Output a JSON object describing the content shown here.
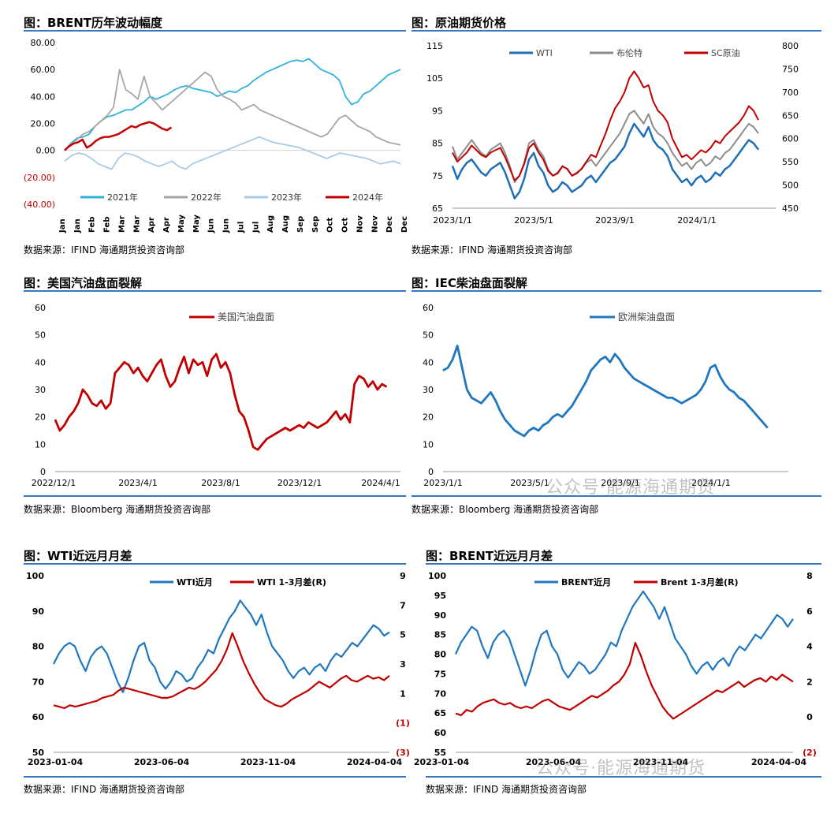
{
  "chart_data": [
    {
      "id": "c1",
      "type": "line",
      "title": "图：BRENT历年波动幅度",
      "source": "数据来源：IFIND   海通期货投资咨询部",
      "x_ticks": [
        "Jan",
        "Jan",
        "Feb",
        "Feb",
        "Mar",
        "Mar",
        "Apr",
        "Apr",
        "May",
        "May",
        "Jun",
        "Jun",
        "Jul",
        "Jul",
        "Aug",
        "Aug",
        "Sep",
        "Sep",
        "Oct",
        "Oct",
        "Nov",
        "Nov",
        "Dec",
        "Dec"
      ],
      "y_ticks": [
        "80.00",
        "60.00",
        "40.00",
        "20.00",
        "0.00",
        "(20.00)",
        "(40.00)"
      ],
      "ylim": [
        -40,
        80
      ],
      "negative_tick_color": "#c00000",
      "legend_position": "bottom",
      "series": [
        {
          "name": "2021年",
          "color": "#2fb3d8",
          "values": [
            0,
            5,
            9,
            10,
            12,
            18,
            22,
            25,
            26,
            28,
            30,
            30,
            33,
            36,
            40,
            38,
            40,
            42,
            45,
            47,
            48,
            46,
            45,
            44,
            43,
            40,
            42,
            44,
            43,
            46,
            48,
            52,
            55,
            58,
            60,
            62,
            64,
            66,
            67,
            66,
            68,
            64,
            60,
            58,
            56,
            52,
            40,
            34,
            36,
            42,
            44,
            48,
            52,
            56,
            58,
            60
          ]
        },
        {
          "name": "2022年",
          "color": "#a6a6a6",
          "values": [
            0,
            4,
            8,
            12,
            14,
            18,
            22,
            26,
            32,
            60,
            45,
            42,
            38,
            55,
            40,
            35,
            30,
            34,
            38,
            42,
            46,
            50,
            54,
            58,
            55,
            45,
            40,
            38,
            35,
            30,
            32,
            34,
            30,
            28,
            26,
            24,
            22,
            20,
            18,
            16,
            14,
            12,
            10,
            12,
            18,
            24,
            26,
            22,
            18,
            16,
            14,
            10,
            8,
            6,
            5,
            4
          ]
        },
        {
          "name": "2023年",
          "color": "#a9cbe6",
          "values": [
            -8,
            -4,
            -2,
            -3,
            -6,
            -10,
            -12,
            -14,
            -6,
            -2,
            -3,
            -5,
            -8,
            -10,
            -12,
            -10,
            -8,
            -12,
            -14,
            -10,
            -8,
            -6,
            -4,
            -2,
            0,
            2,
            4,
            6,
            8,
            10,
            8,
            6,
            5,
            4,
            3,
            2,
            0,
            -2,
            -4,
            -6,
            -4,
            -2,
            -3,
            -4,
            -5,
            -6,
            -8,
            -10,
            -9,
            -8,
            -10
          ]
        },
        {
          "name": "2024年",
          "color": "#c00000",
          "values": [
            0,
            3,
            5,
            6,
            8,
            2,
            4,
            7,
            9,
            10,
            10,
            11,
            12,
            14,
            16,
            18,
            17,
            19,
            20,
            21,
            20,
            18,
            16,
            15,
            17
          ]
        }
      ]
    },
    {
      "id": "c2",
      "type": "line",
      "title": "图：原油期货价格",
      "source": "数据来源：IFIND   海通期货投资咨询部",
      "x_ticks": [
        "2023/1/1",
        "2023/5/1",
        "2023/9/1",
        "2024/1/1"
      ],
      "y_left_ticks": [
        "115",
        "105",
        "95",
        "85",
        "75",
        "65"
      ],
      "y_right_ticks": [
        "800",
        "750",
        "700",
        "650",
        "600",
        "550",
        "500",
        "450"
      ],
      "ylim_left": [
        65,
        115
      ],
      "ylim_right": [
        450,
        800
      ],
      "legend_position": "top",
      "series": [
        {
          "name": "WTI",
          "color": "#1f6fb8",
          "axis": "left",
          "values": [
            78,
            74,
            77,
            79,
            80,
            78,
            76,
            75,
            77,
            78,
            79,
            76,
            72,
            68,
            70,
            74,
            80,
            82,
            78,
            76,
            72,
            70,
            71,
            73,
            72,
            70,
            71,
            72,
            74,
            75,
            73,
            75,
            77,
            79,
            80,
            82,
            84,
            88,
            91,
            89,
            87,
            90,
            86,
            84,
            83,
            81,
            77,
            75,
            73,
            74,
            72,
            74,
            75,
            73,
            74,
            76,
            75,
            77,
            78,
            80,
            82,
            84,
            86,
            85,
            83
          ]
        },
        {
          "name": "布伦特",
          "color": "#8c8c8c",
          "axis": "left",
          "values": [
            84,
            80,
            82,
            84,
            86,
            84,
            82,
            81,
            83,
            84,
            85,
            82,
            78,
            73,
            75,
            79,
            85,
            86,
            83,
            81,
            77,
            75,
            76,
            78,
            77,
            75,
            76,
            77,
            79,
            80,
            78,
            80,
            82,
            84,
            86,
            88,
            91,
            94,
            95,
            93,
            91,
            94,
            90,
            88,
            87,
            85,
            82,
            80,
            78,
            79,
            77,
            79,
            80,
            78,
            79,
            81,
            80,
            82,
            83,
            85,
            87,
            89,
            91,
            90,
            88
          ]
        },
        {
          "name": "SC原油",
          "color": "#c00000",
          "axis": "right",
          "values": [
            570,
            550,
            560,
            570,
            585,
            575,
            565,
            560,
            570,
            575,
            580,
            560,
            535,
            510,
            520,
            545,
            580,
            590,
            570,
            555,
            530,
            520,
            525,
            540,
            535,
            520,
            525,
            535,
            550,
            565,
            560,
            585,
            610,
            640,
            665,
            680,
            700,
            730,
            745,
            730,
            710,
            715,
            680,
            660,
            650,
            635,
            600,
            580,
            560,
            565,
            555,
            565,
            575,
            570,
            580,
            595,
            590,
            605,
            615,
            625,
            635,
            650,
            670,
            660,
            640
          ]
        }
      ]
    },
    {
      "id": "c3",
      "type": "line",
      "title": "图：美国汽油盘面裂解",
      "source": "数据来源：Bloomberg   海通期货投资咨询部",
      "x_ticks": [
        "2022/12/1",
        "2023/4/1",
        "2023/8/1",
        "2023/12/1",
        "2024/4/1"
      ],
      "y_ticks": [
        "60",
        "50",
        "40",
        "30",
        "20",
        "10",
        "0"
      ],
      "ylim": [
        0,
        60
      ],
      "legend_position": "top",
      "series": [
        {
          "name": "美国汽油盘面",
          "color": "#c00000",
          "values": [
            19,
            15,
            17,
            20,
            22,
            25,
            30,
            28,
            25,
            24,
            26,
            23,
            25,
            36,
            38,
            40,
            39,
            36,
            38,
            35,
            33,
            36,
            39,
            41,
            35,
            31,
            33,
            38,
            42,
            36,
            41,
            39,
            40,
            35,
            41,
            43,
            38,
            40,
            36,
            28,
            22,
            20,
            15,
            9,
            8,
            10,
            12,
            13,
            14,
            15,
            16,
            15,
            16,
            17,
            16,
            18,
            17,
            16,
            17,
            18,
            20,
            22,
            19,
            21,
            18,
            32,
            35,
            34,
            31,
            33,
            30,
            32,
            31
          ]
        }
      ]
    },
    {
      "id": "c4",
      "type": "line",
      "title": "图：IEC柴油盘面裂解",
      "source": "数据来源：Bloomberg   海通期货投资咨询部",
      "x_ticks": [
        "2023/1/1",
        "2023/5/1",
        "2023/9/1",
        "2024/1/1"
      ],
      "y_ticks": [
        "60",
        "50",
        "40",
        "30",
        "20",
        "10",
        "0"
      ],
      "ylim": [
        0,
        60
      ],
      "legend_position": "top",
      "series": [
        {
          "name": "欧洲柴油盘面",
          "color": "#1f77bf",
          "values": [
            37,
            38,
            41,
            46,
            38,
            30,
            27,
            26,
            25,
            27,
            29,
            26,
            22,
            19,
            17,
            15,
            14,
            13,
            15,
            16,
            15,
            17,
            18,
            20,
            21,
            20,
            22,
            24,
            27,
            30,
            33,
            37,
            39,
            41,
            42,
            40,
            43,
            41,
            38,
            36,
            34,
            33,
            32,
            31,
            30,
            29,
            28,
            27,
            27,
            26,
            25,
            26,
            27,
            28,
            30,
            33,
            38,
            39,
            35,
            32,
            30,
            29,
            27,
            26,
            24,
            22,
            20,
            18,
            16
          ]
        }
      ]
    },
    {
      "id": "c5",
      "type": "line",
      "title": "图：WTI近远月月差",
      "source": "数据来源：IFIND   海通期货投资咨询部",
      "x_ticks": [
        "2023-01-04",
        "2023-06-04",
        "2023-11-04",
        "2024-04-04"
      ],
      "y_left_ticks": [
        "100",
        "90",
        "80",
        "70",
        "60",
        "50"
      ],
      "y_right_ticks": [
        "9",
        "7",
        "5",
        "3",
        "1",
        "(1)",
        "(3)"
      ],
      "ylim_left": [
        50,
        100
      ],
      "ylim_right": [
        -3,
        9
      ],
      "legend_position": "top",
      "series": [
        {
          "name": "WTI近月",
          "color": "#1f77bf",
          "axis": "left",
          "values": [
            75,
            78,
            80,
            81,
            80,
            76,
            73,
            77,
            79,
            80,
            78,
            74,
            70,
            67,
            71,
            76,
            80,
            81,
            76,
            74,
            70,
            68,
            70,
            73,
            72,
            70,
            71,
            74,
            76,
            79,
            78,
            82,
            85,
            88,
            90,
            93,
            91,
            89,
            86,
            89,
            84,
            80,
            78,
            76,
            73,
            71,
            73,
            74,
            72,
            74,
            75,
            73,
            76,
            78,
            77,
            79,
            81,
            80,
            82,
            84,
            86,
            85,
            83,
            84
          ]
        },
        {
          "name": "WTI 1-3月差(R)",
          "color": "#c00000",
          "axis": "right",
          "values": [
            0.2,
            0.1,
            0,
            0.2,
            0.1,
            0.2,
            0.3,
            0.4,
            0.5,
            0.7,
            0.8,
            0.9,
            1.2,
            1.4,
            1.3,
            1.2,
            1.1,
            1.0,
            0.9,
            0.8,
            0.7,
            0.7,
            0.8,
            1.0,
            1.2,
            1.4,
            1.3,
            1.5,
            1.8,
            2.2,
            2.6,
            3.2,
            4.0,
            5.1,
            4.2,
            3.2,
            2.4,
            1.7,
            1.1,
            0.6,
            0.4,
            0.2,
            0.1,
            0.3,
            0.6,
            0.8,
            1.0,
            1.2,
            1.5,
            1.8,
            1.6,
            1.4,
            1.7,
            2.0,
            2.2,
            1.9,
            1.8,
            2.0,
            2.2,
            2.0,
            2.1,
            1.9,
            2.2
          ]
        }
      ]
    },
    {
      "id": "c6",
      "type": "line",
      "title": "图：BRENT近远月月差",
      "source": "数据来源：IFIND   海通期货投资咨询部",
      "x_ticks": [
        "2023-01-04",
        "2023-06-04",
        "2023-11-04",
        "2024-04-04"
      ],
      "y_left_ticks": [
        "100",
        "95",
        "90",
        "85",
        "80",
        "75",
        "70",
        "65",
        "60",
        "55"
      ],
      "y_right_ticks": [
        "8",
        "6",
        "4",
        "2",
        "0",
        "(2)"
      ],
      "ylim_left": [
        55,
        100
      ],
      "ylim_right": [
        -2,
        8
      ],
      "legend_position": "top",
      "series": [
        {
          "name": "BRENT近月",
          "color": "#1f77bf",
          "axis": "left",
          "values": [
            80,
            83,
            85,
            87,
            86,
            82,
            79,
            83,
            85,
            86,
            84,
            80,
            76,
            72,
            76,
            81,
            85,
            86,
            82,
            80,
            76,
            74,
            76,
            78,
            77,
            75,
            76,
            78,
            80,
            83,
            82,
            86,
            89,
            92,
            94,
            96,
            94,
            92,
            89,
            92,
            88,
            84,
            82,
            80,
            77,
            75,
            77,
            78,
            76,
            78,
            79,
            77,
            80,
            82,
            81,
            83,
            85,
            84,
            86,
            88,
            90,
            89,
            87,
            89
          ]
        },
        {
          "name": "Brent 1-3月差(R)",
          "color": "#c00000",
          "axis": "right",
          "values": [
            0.2,
            0.1,
            0.4,
            0.3,
            0.6,
            0.8,
            0.9,
            1.0,
            0.8,
            0.7,
            0.8,
            0.6,
            0.5,
            0.6,
            0.5,
            0.7,
            0.9,
            1.0,
            0.8,
            0.6,
            0.5,
            0.4,
            0.6,
            0.8,
            1.0,
            1.2,
            1.1,
            1.3,
            1.5,
            1.8,
            2.0,
            2.4,
            3.0,
            4.2,
            3.5,
            2.6,
            1.8,
            1.2,
            0.6,
            0.2,
            -0.1,
            0.1,
            0.3,
            0.5,
            0.7,
            0.9,
            1.1,
            1.3,
            1.5,
            1.4,
            1.6,
            1.8,
            2.0,
            1.7,
            1.9,
            2.1,
            2.2,
            2.0,
            2.3,
            2.1,
            2.4,
            2.2,
            2.0
          ]
        }
      ]
    }
  ],
  "watermark": "公众号·能源海通期货"
}
